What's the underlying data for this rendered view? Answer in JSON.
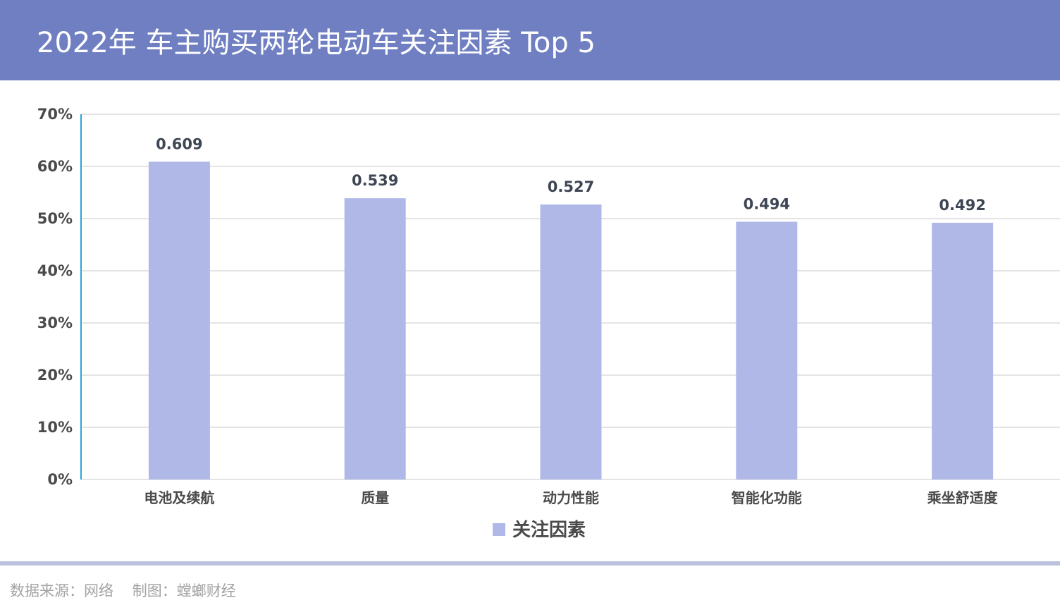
{
  "title": "2022年 车主购买两轮电动车关注因素 Top 5",
  "footer": "数据来源：网络    制图：螳螂财经",
  "colors": {
    "header": "#6f7fc1",
    "bar": "#b0b8e8",
    "axis": "#29a6d9",
    "grid": "#e4e4e4"
  },
  "chart_data": {
    "type": "bar",
    "categories": [
      "电池及续航",
      "质量",
      "动力性能",
      "智能化功能",
      "乘坐舒适度"
    ],
    "series": [
      {
        "name": "关注因素",
        "values": [
          0.609,
          0.539,
          0.527,
          0.494,
          0.492
        ]
      }
    ],
    "data_labels": [
      "0.609",
      "0.539",
      "0.527",
      "0.494",
      "0.492"
    ],
    "y_ticks": [
      "0%",
      "10%",
      "20%",
      "30%",
      "40%",
      "50%",
      "60%",
      "70%"
    ],
    "ylim": [
      0,
      0.7
    ],
    "grid": true,
    "legend": "bottom-center"
  }
}
